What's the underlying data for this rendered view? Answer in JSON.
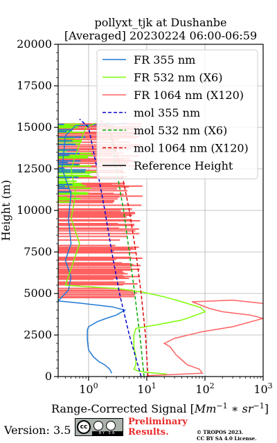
{
  "header": {
    "title_line1": "pollyxt_tjk at Dushanbe",
    "title_line2": "[Averaged] 20230224 06:00-06:59"
  },
  "footer": {
    "version": "Version: 3.5",
    "preliminary_line1": "Preliminary",
    "preliminary_line2": "Results.",
    "copyright_line1": "© TROPOS 2023.",
    "copyright_line2": "CC BY SA 4.0 License.",
    "license_badge": "BY  SA"
  },
  "chart_data": {
    "type": "line",
    "xlabel": "Range-Corrected Signal [Mm^-1 * sr^-1]",
    "xlabel_parts": {
      "main": "Range-Corrected Signal [",
      "units": "Mm",
      "exp1": "−1",
      "mid": " ∗ sr",
      "exp2": "−1",
      "end": "]"
    },
    "ylabel": "Height (m)",
    "xscale": "log",
    "xlim": [
      0.3,
      1000
    ],
    "ylim": [
      0,
      20000
    ],
    "xticks": [
      {
        "value": 1,
        "base": "10",
        "exp": "0"
      },
      {
        "value": 10,
        "base": "10",
        "exp": "1"
      },
      {
        "value": 100,
        "base": "10",
        "exp": "2"
      },
      {
        "value": 1000,
        "base": "10",
        "exp": "3"
      }
    ],
    "yticks": [
      0,
      2500,
      5000,
      7500,
      10000,
      12500,
      15000,
      17500,
      20000
    ],
    "ytick_labels": [
      "0",
      "2500",
      "5000",
      "7500",
      "10000",
      "12500",
      "15000",
      "17500",
      "20000"
    ],
    "grid": true,
    "legend_position": "top-right",
    "colors": {
      "fr355": "#1f77d4",
      "fr532": "#7cfc00",
      "fr1064": "#ff6060",
      "mol355": "#0000cc",
      "mol532": "#00aa00",
      "mol1064": "#dd0000",
      "ref": "#000000"
    },
    "series": [
      {
        "name": "FR 355 nm",
        "style": "solid",
        "color": "#1f77d4",
        "points": [
          [
            2.5,
            200
          ],
          [
            2.3,
            450
          ],
          [
            1.9,
            700
          ],
          [
            1.5,
            900
          ],
          [
            1.2,
            1200
          ],
          [
            1.0,
            1600
          ],
          [
            0.95,
            2200
          ],
          [
            0.95,
            2800
          ],
          [
            1.0,
            3000
          ],
          [
            1.4,
            3300
          ],
          [
            2.0,
            3500
          ],
          [
            3.0,
            3700
          ],
          [
            4.2,
            4000
          ],
          [
            2.5,
            4200
          ],
          [
            0.8,
            4400
          ],
          [
            0.3,
            4550
          ],
          [
            0.45,
            5200
          ],
          [
            0.5,
            6000
          ],
          [
            0.4,
            7000
          ],
          [
            0.5,
            8000
          ],
          [
            0.45,
            9500
          ],
          [
            0.5,
            11000
          ],
          [
            0.35,
            12500
          ],
          [
            0.4,
            14500
          ],
          [
            0.6,
            15100
          ],
          [
            4.5,
            15250
          ]
        ]
      },
      {
        "name": "FR 532 nm (X6)",
        "style": "solid",
        "color": "#7cfc00",
        "points": [
          [
            22,
            150
          ],
          [
            10,
            250
          ],
          [
            7,
            350
          ],
          [
            6,
            450
          ],
          [
            6.5,
            700
          ],
          [
            6.5,
            1200
          ],
          [
            6,
            1800
          ],
          [
            6,
            2500
          ],
          [
            6.5,
            2900
          ],
          [
            14,
            3100
          ],
          [
            40,
            3400
          ],
          [
            70,
            3700
          ],
          [
            100,
            3900
          ],
          [
            85,
            4150
          ],
          [
            40,
            4500
          ],
          [
            20,
            4800
          ],
          [
            8,
            5100
          ],
          [
            3,
            5300
          ],
          [
            1,
            5400
          ],
          [
            0.4,
            5500
          ],
          [
            0.5,
            6500
          ],
          [
            0.7,
            8000
          ],
          [
            0.5,
            9500
          ],
          [
            0.6,
            11000
          ],
          [
            0.5,
            12500
          ],
          [
            0.7,
            14000
          ],
          [
            0.9,
            15000
          ],
          [
            1.3,
            15250
          ]
        ]
      },
      {
        "name": "FR 1064 nm (X120)",
        "style": "solid",
        "color": "#ff6060",
        "points": [
          [
            10,
            50
          ],
          [
            90,
            200
          ],
          [
            80,
            450
          ],
          [
            50,
            700
          ],
          [
            40,
            1000
          ],
          [
            32,
            1300
          ],
          [
            25,
            1800
          ],
          [
            20,
            2000
          ],
          [
            30,
            2300
          ],
          [
            90,
            2700
          ],
          [
            300,
            3000
          ],
          [
            1000,
            3500
          ],
          [
            600,
            3700
          ],
          [
            200,
            3900
          ],
          [
            120,
            4100
          ],
          [
            60,
            4500
          ],
          [
            300,
            4600
          ],
          [
            1000,
            4400
          ]
        ]
      },
      {
        "name": "mol 355 nm",
        "style": "dashed",
        "color": "#0000cc",
        "points": [
          [
            8,
            0
          ],
          [
            5.0,
            2500
          ],
          [
            3.4,
            5000
          ],
          [
            2.5,
            7500
          ],
          [
            1.9,
            10000
          ],
          [
            1.4,
            12500
          ],
          [
            1.0,
            15000
          ],
          [
            0.7,
            15500
          ]
        ]
      },
      {
        "name": "mol 532 nm (X6)",
        "style": "dashed",
        "color": "#00aa00",
        "points": [
          [
            9,
            0
          ],
          [
            7.6,
            2500
          ],
          [
            6.2,
            5000
          ],
          [
            5.0,
            7500
          ],
          [
            4.0,
            10000
          ],
          [
            3.0,
            12500
          ],
          [
            2.3,
            15000
          ],
          [
            2.1,
            15300
          ]
        ]
      },
      {
        "name": "mol 1064 nm (X120)",
        "style": "dashed",
        "color": "#dd0000",
        "points": [
          [
            10.5,
            0
          ],
          [
            9.5,
            2500
          ],
          [
            8.0,
            5000
          ],
          [
            6.5,
            7500
          ],
          [
            5.0,
            10000
          ],
          [
            3.6,
            12500
          ],
          [
            2.2,
            15000
          ],
          [
            1.6,
            15400
          ]
        ]
      },
      {
        "name": "Reference Height",
        "style": "solid",
        "color": "#000000",
        "points": []
      }
    ]
  }
}
